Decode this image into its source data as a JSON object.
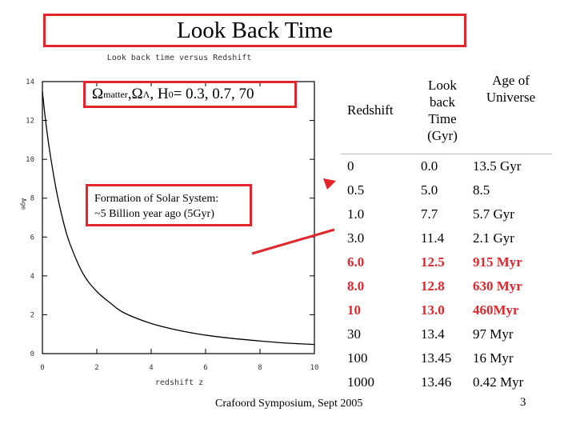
{
  "slide": {
    "title": "Look Back Time",
    "footer": "Crafoord Symposium, Sept 2005",
    "page_number": "3",
    "accent_color": "#e3262c"
  },
  "legend": {
    "omega": "Ω",
    "sub_matter": "matter",
    "sep1": ", ",
    "omega2": "Ω",
    "sub_lambda": "Λ",
    "sep2": ", H",
    "sub_zero": "0",
    "values": " = 0.3, 0.7, 70"
  },
  "annotation": {
    "line1": "Formation of Solar System:",
    "line2": "~5 Billion year ago (5Gyr)"
  },
  "table": {
    "headers": {
      "redshift": "Redshift",
      "lookback": [
        "Look",
        "back",
        "Time",
        "(Gyr)"
      ],
      "age": [
        "Age of",
        "Universe"
      ]
    },
    "rows": [
      {
        "z": "0",
        "t": "0.0",
        "age": "13.5 Gyr"
      },
      {
        "z": "0.5",
        "t": "5.0",
        "age": "8.5"
      },
      {
        "z": "1.0",
        "t": "7.7",
        "age": "5.7 Gyr"
      },
      {
        "z": "3.0",
        "t": "11.4",
        "age": "2.1 Gyr"
      },
      {
        "z": "6.0",
        "t": "12.5",
        "age": "915 Myr"
      },
      {
        "z": "8.0",
        "t": "12.8",
        "age": "630 Myr"
      },
      {
        "z": "10",
        "t": "13.0",
        "age": "460Myr"
      },
      {
        "z": "30",
        "t": "13.4",
        "age": "97 Myr"
      },
      {
        "z": "100",
        "t": "13.45",
        "age": "16 Myr"
      },
      {
        "z": "1000",
        "t": "13.46",
        "age": "0.42 Myr"
      }
    ]
  },
  "chart_data": {
    "type": "line",
    "title": "Look back time versus Redshift",
    "xlabel": "redshift z",
    "ylabel": "Age",
    "xlim": [
      0,
      10
    ],
    "ylim": [
      0,
      14
    ],
    "xticks": [
      "0",
      "2",
      "4",
      "6",
      "8",
      "10"
    ],
    "yticks": [
      "0",
      "2",
      "4",
      "6",
      "8",
      "10",
      "12",
      "14"
    ],
    "x": [
      0,
      0.1,
      0.25,
      0.5,
      0.75,
      1,
      1.5,
      2,
      2.5,
      3,
      4,
      5,
      6,
      7,
      8,
      9,
      10
    ],
    "y": [
      13.5,
      12.2,
      10.6,
      8.5,
      6.9,
      5.7,
      4.1,
      3.2,
      2.6,
      2.1,
      1.55,
      1.2,
      0.95,
      0.78,
      0.65,
      0.54,
      0.47
    ],
    "series_color": "#000000",
    "grid": false
  }
}
